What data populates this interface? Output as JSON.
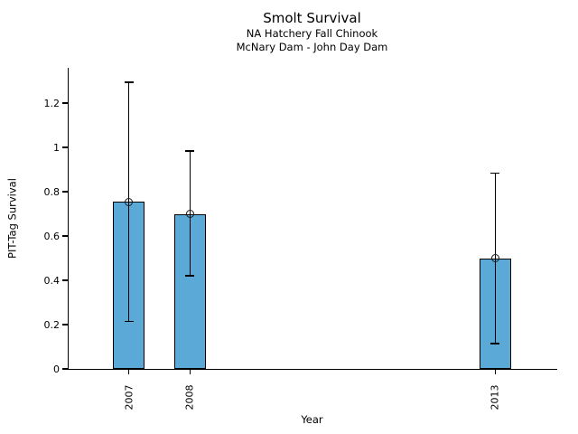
{
  "chart_data": {
    "type": "bar",
    "title": "Smolt Survival",
    "subtitle": [
      "NA Hatchery Fall Chinook",
      "McNary Dam - John Day Dam"
    ],
    "xlabel": "Year",
    "ylabel": "PIT-Tag Survival",
    "categories": [
      "2007",
      "2008",
      "2013"
    ],
    "x_positions": [
      2007,
      2008,
      2013
    ],
    "values": [
      0.755,
      0.7,
      0.5
    ],
    "error_low": [
      0.215,
      0.42,
      0.115
    ],
    "error_high": [
      1.295,
      0.985,
      0.885
    ],
    "x_range": [
      2006,
      2014
    ],
    "ylim": [
      0,
      1.36
    ],
    "yticks": [
      0,
      0.2,
      0.4,
      0.6,
      0.8,
      1,
      1.2
    ],
    "ytick_labels": [
      "0",
      "0.2",
      "0.4",
      "0.6",
      "0.8",
      "1",
      "1.2"
    ],
    "bar_color": "#5aa9d6",
    "edge_color": "#000000",
    "marker": "open-circle",
    "grid": false,
    "legend_position": "none"
  }
}
